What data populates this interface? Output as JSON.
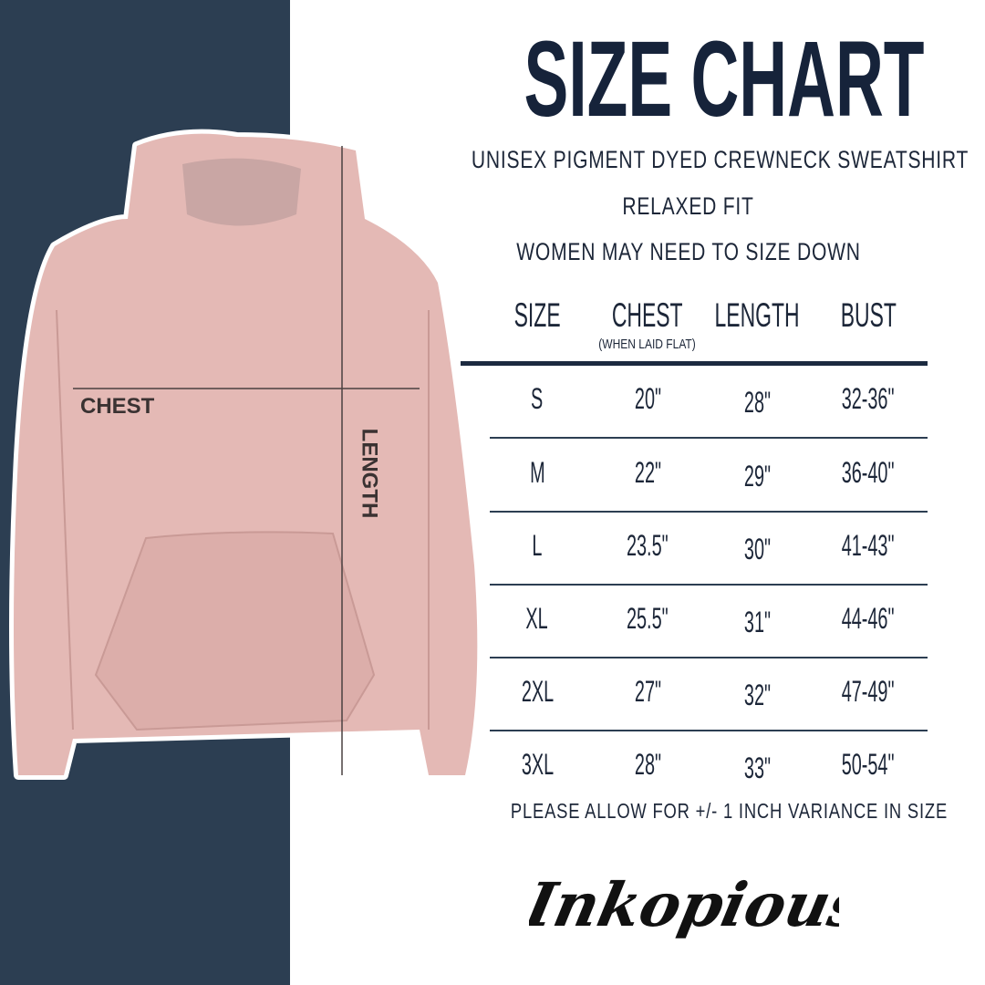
{
  "title": "SIZE CHART",
  "subtitles": [
    "UNISEX PIGMENT DYED CREWNECK SWEATSHIRT",
    "RELAXED FIT",
    "WOMEN MAY NEED TO SIZE DOWN"
  ],
  "illustration": {
    "chest_label": "CHEST",
    "length_label": "LENGTH",
    "colors": {
      "panel": "#2c3e52",
      "hoodie": "#e4b9b5"
    }
  },
  "table": {
    "headers": [
      "SIZE",
      "CHEST",
      "LENGTH",
      "BUST"
    ],
    "chest_note": "(WHEN LAID FLAT)",
    "rows": [
      [
        "S",
        "20\"",
        "28\"",
        "32-36\""
      ],
      [
        "M",
        "22\"",
        "29\"",
        "36-40\""
      ],
      [
        "L",
        "23.5\"",
        "30\"",
        "41-43\""
      ],
      [
        "XL",
        "25.5\"",
        "31\"",
        "44-46\""
      ],
      [
        "2XL",
        "27\"",
        "32\"",
        "47-49\""
      ],
      [
        "3XL",
        "28\"",
        "33\"",
        "50-54\""
      ]
    ]
  },
  "note": "PLEASE ALLOW FOR +/- 1 INCH VARIANCE IN SIZE",
  "brand": "Inkopious"
}
